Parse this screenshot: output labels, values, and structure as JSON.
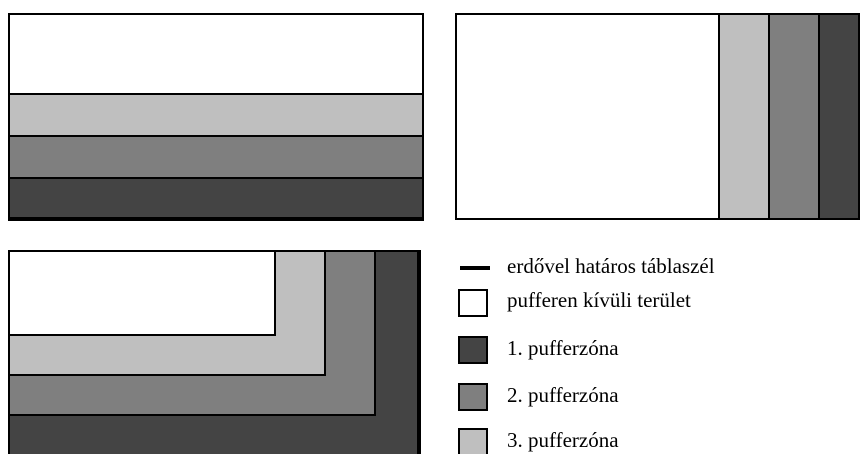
{
  "legend": [
    "erdővel határos táblaszél",
    "pufferen kívüli terület",
    "1. pufferzóna",
    "2. pufferzóna",
    "3. pufferzóna"
  ]
}
